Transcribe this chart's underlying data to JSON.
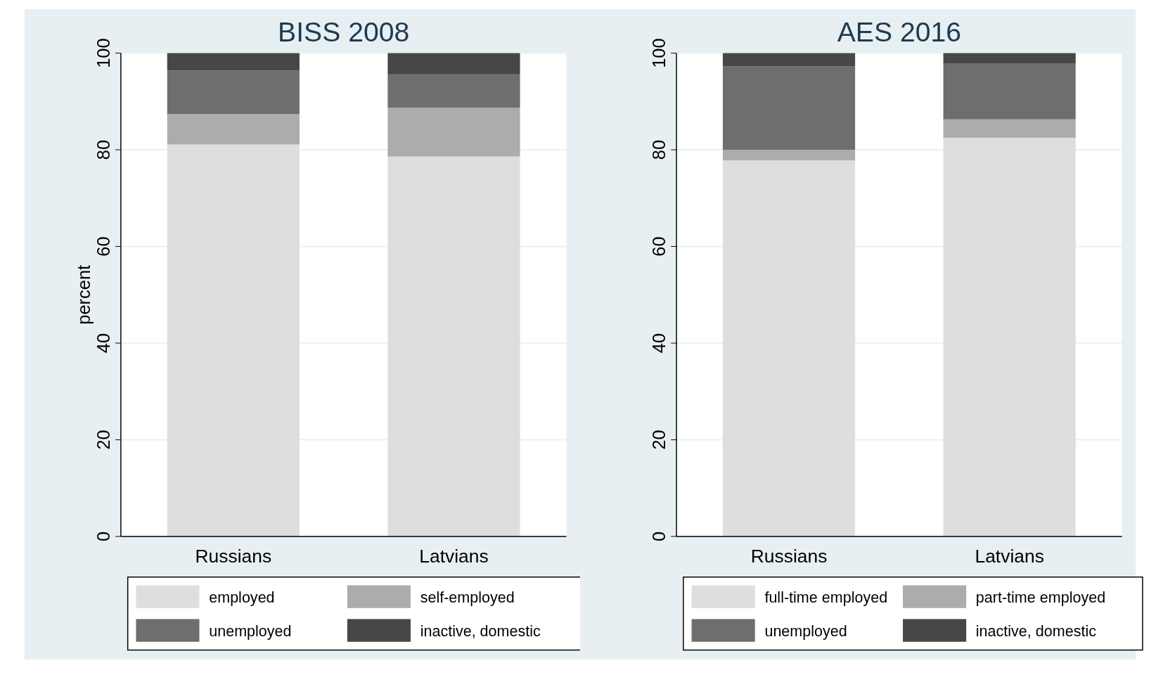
{
  "chart_data": [
    {
      "type": "bar",
      "title": "BISS 2008",
      "ylabel": "percent",
      "categories": [
        "Russians",
        "Latvians"
      ],
      "stacked": true,
      "ylim": [
        0,
        100
      ],
      "yticks": [
        0,
        20,
        40,
        60,
        80,
        100
      ],
      "grid": "y",
      "legend": "bottom",
      "series": [
        {
          "name": "employed",
          "color": "#dedede",
          "values": [
            81.1,
            78.6
          ]
        },
        {
          "name": "self-employed",
          "color": "#acacac",
          "values": [
            6.3,
            10.1
          ]
        },
        {
          "name": "unemployed",
          "color": "#6e6e6e",
          "values": [
            9,
            6.9
          ]
        },
        {
          "name": "inactive, domestic",
          "color": "#474747",
          "values": [
            3.6,
            4.4
          ]
        }
      ]
    },
    {
      "type": "bar",
      "title": "AES 2016",
      "categories": [
        "Russians",
        "Latvians"
      ],
      "stacked": true,
      "ylim": [
        0,
        100
      ],
      "yticks": [
        0,
        20,
        40,
        60,
        80,
        100
      ],
      "grid": "y",
      "legend": "bottom",
      "series": [
        {
          "name": "full-time employed",
          "color": "#dedede",
          "values": [
            77.8,
            82.5
          ]
        },
        {
          "name": "part-time employed",
          "color": "#acacac",
          "values": [
            2.2,
            3.8
          ]
        },
        {
          "name": "unemployed",
          "color": "#6e6e6e",
          "values": [
            17.3,
            11.5
          ]
        },
        {
          "name": "inactive, domestic",
          "color": "#474747",
          "values": [
            2.7,
            2.2
          ]
        }
      ]
    }
  ]
}
